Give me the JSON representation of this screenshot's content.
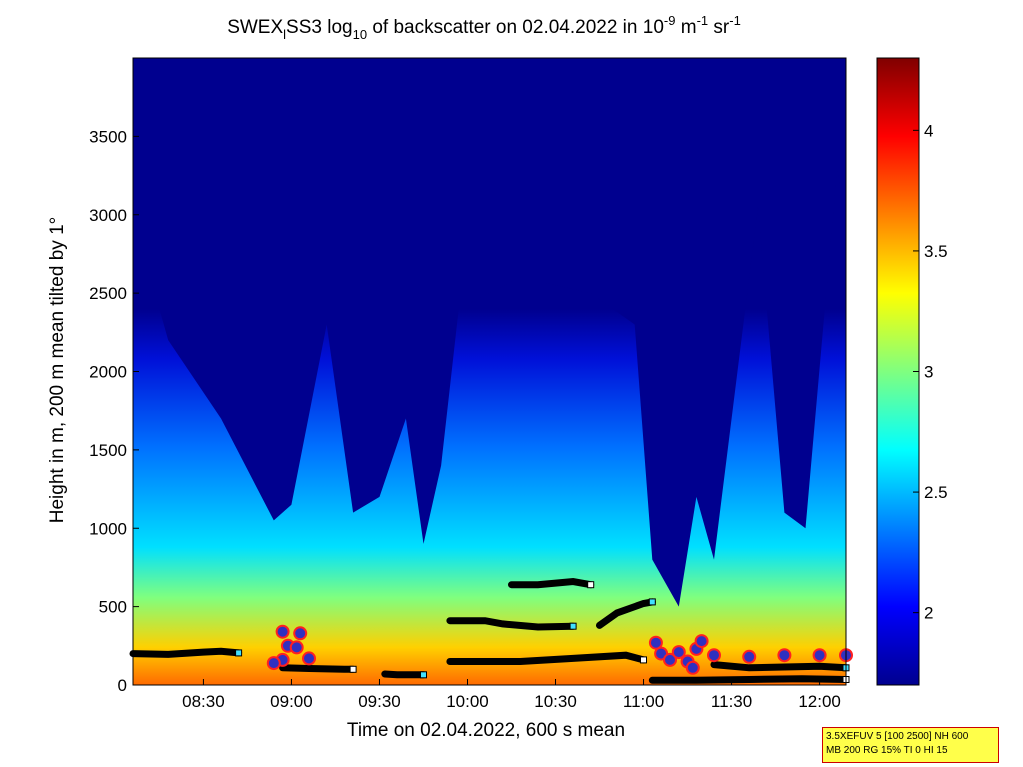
{
  "chart_data": {
    "type": "heatmap",
    "title": {
      "prefix": "SWEX",
      "sub1": "l",
      "mid1": "SS3 log",
      "sub2": "10",
      "mid2": " of backscatter on 02.04.2022 in 10",
      "sup1": "-9",
      "mid3": " m",
      "sup2": "-1",
      "mid4": " sr",
      "sup3": "-1"
    },
    "xlabel": "Time on 02.04.2022, 600 s mean",
    "ylabel": "Height in m, 200 m mean tilted by 1°",
    "x_range_hours": [
      8.1,
      12.15
    ],
    "x_ticks": [
      {
        "label": "08:30",
        "hour": 8.5
      },
      {
        "label": "09:00",
        "hour": 9.0
      },
      {
        "label": "09:30",
        "hour": 9.5
      },
      {
        "label": "10:00",
        "hour": 10.0
      },
      {
        "label": "10:30",
        "hour": 10.5
      },
      {
        "label": "11:00",
        "hour": 11.0
      },
      {
        "label": "11:30",
        "hour": 11.5
      },
      {
        "label": "12:00",
        "hour": 12.0
      }
    ],
    "y_range": [
      0,
      4000
    ],
    "y_ticks": [
      {
        "label": "0",
        "value": 0
      },
      {
        "label": "500",
        "value": 500
      },
      {
        "label": "1000",
        "value": 1000
      },
      {
        "label": "1500",
        "value": 1500
      },
      {
        "label": "2000",
        "value": 2000
      },
      {
        "label": "2500",
        "value": 2500
      },
      {
        "label": "3000",
        "value": 3000
      },
      {
        "label": "3500",
        "value": 3500
      }
    ],
    "colorbar": {
      "colormap": "jet",
      "range": [
        1.7,
        4.3
      ],
      "ticks": [
        {
          "label": "2",
          "value": 2.0
        },
        {
          "label": "2.5",
          "value": 2.5
        },
        {
          "label": "3",
          "value": 3.0
        },
        {
          "label": "3.5",
          "value": 3.5
        },
        {
          "label": "4",
          "value": 4.0
        }
      ]
    },
    "mixing_layer_height": [
      {
        "hour": 8.1,
        "value": 3000
      },
      {
        "hour": 8.3,
        "value": 2200
      },
      {
        "hour": 8.6,
        "value": 1700
      },
      {
        "hour": 8.9,
        "value": 1050
      },
      {
        "hour": 9.0,
        "value": 1150
      },
      {
        "hour": 9.2,
        "value": 2300
      },
      {
        "hour": 9.35,
        "value": 1100
      },
      {
        "hour": 9.5,
        "value": 1200
      },
      {
        "hour": 9.65,
        "value": 1700
      },
      {
        "hour": 9.75,
        "value": 900
      },
      {
        "hour": 9.85,
        "value": 1400
      },
      {
        "hour": 9.95,
        "value": 2400
      },
      {
        "hour": 10.3,
        "value": 2600
      },
      {
        "hour": 10.7,
        "value": 2500
      },
      {
        "hour": 10.95,
        "value": 2300
      },
      {
        "hour": 11.05,
        "value": 800
      },
      {
        "hour": 11.2,
        "value": 500
      },
      {
        "hour": 11.3,
        "value": 1200
      },
      {
        "hour": 11.4,
        "value": 800
      },
      {
        "hour": 11.65,
        "value": 3050
      },
      {
        "hour": 11.8,
        "value": 1100
      },
      {
        "hour": 11.92,
        "value": 1000
      },
      {
        "hour": 12.1,
        "value": 3300
      },
      {
        "hour": 12.15,
        "value": 2900
      }
    ],
    "layer_detections": [
      {
        "points": [
          [
            8.1,
            200
          ],
          [
            8.3,
            195
          ],
          [
            8.5,
            210
          ],
          [
            8.6,
            215
          ],
          [
            8.7,
            205
          ]
        ]
      },
      {
        "points": [
          [
            8.95,
            110
          ],
          [
            9.1,
            105
          ],
          [
            9.3,
            100
          ],
          [
            9.35,
            100
          ]
        ]
      },
      {
        "points": [
          [
            9.53,
            70
          ],
          [
            9.6,
            65
          ],
          [
            9.75,
            65
          ]
        ]
      },
      {
        "points": [
          [
            9.9,
            150
          ],
          [
            10.1,
            150
          ],
          [
            10.3,
            150
          ],
          [
            10.6,
            170
          ],
          [
            10.9,
            190
          ],
          [
            11.0,
            160
          ]
        ]
      },
      {
        "points": [
          [
            9.9,
            410
          ],
          [
            10.1,
            410
          ],
          [
            10.2,
            390
          ],
          [
            10.4,
            370
          ],
          [
            10.6,
            375
          ]
        ]
      },
      {
        "points": [
          [
            10.25,
            640
          ],
          [
            10.4,
            640
          ],
          [
            10.6,
            660
          ],
          [
            10.7,
            640
          ]
        ]
      },
      {
        "points": [
          [
            10.75,
            380
          ],
          [
            10.85,
            460
          ],
          [
            11.0,
            520
          ],
          [
            11.05,
            530
          ]
        ]
      },
      {
        "points": [
          [
            11.05,
            30
          ],
          [
            11.3,
            30
          ],
          [
            11.6,
            35
          ],
          [
            11.9,
            40
          ],
          [
            12.15,
            35
          ]
        ]
      },
      {
        "points": [
          [
            11.4,
            130
          ],
          [
            11.6,
            110
          ],
          [
            11.8,
            115
          ],
          [
            12.0,
            120
          ],
          [
            12.15,
            110
          ]
        ]
      }
    ],
    "red_marker_clusters": [
      {
        "points": [
          [
            8.95,
            340
          ],
          [
            9.05,
            330
          ],
          [
            8.98,
            250
          ],
          [
            9.03,
            240
          ],
          [
            8.95,
            160
          ],
          [
            9.1,
            170
          ],
          [
            8.9,
            140
          ]
        ]
      },
      {
        "points": [
          [
            11.07,
            270
          ],
          [
            11.1,
            200
          ],
          [
            11.15,
            160
          ],
          [
            11.2,
            210
          ],
          [
            11.25,
            150
          ],
          [
            11.3,
            230
          ],
          [
            11.33,
            280
          ],
          [
            11.28,
            110
          ]
        ]
      },
      {
        "points": [
          [
            11.4,
            190
          ],
          [
            11.6,
            180
          ],
          [
            11.8,
            190
          ],
          [
            12.0,
            190
          ],
          [
            12.15,
            190
          ]
        ]
      }
    ]
  },
  "info_box": {
    "line1": "3.5XEFUV 5 [100 2500] NH 600",
    "line2": "MB 200 RG 15% TI 0 HI 15"
  }
}
